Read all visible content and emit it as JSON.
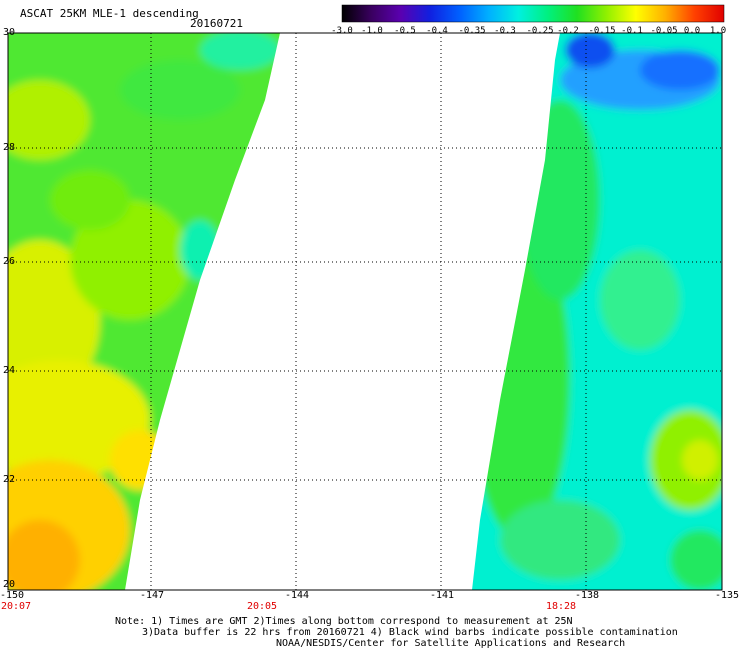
{
  "header": {
    "title": "ASCAT 25KM MLE-1 descending",
    "date": "20160721"
  },
  "colorbar": {
    "labels": [
      "-3.0",
      "-1.0",
      "-0.5",
      "-0.4",
      "-0.35",
      "-0.3",
      "-0.25",
      "-0.2",
      "-0.15",
      "-0.1",
      "-0.05",
      "0.0",
      "1.0"
    ],
    "colors": [
      "#000000",
      "#3a0060",
      "#5a00b0",
      "#1020e0",
      "#0060ff",
      "#00b0ff",
      "#00f0e0",
      "#00f080",
      "#20e020",
      "#90f000",
      "#ffff00",
      "#ffb000",
      "#ff4000",
      "#e00000"
    ]
  },
  "map": {
    "lon_ticks": [
      "-150",
      "-147",
      "-144",
      "-141",
      "-138",
      "-135"
    ],
    "lat_ticks": [
      "30",
      "28",
      "26",
      "24",
      "22",
      "20"
    ],
    "lon_range": [
      -150,
      -135
    ],
    "lat_range": [
      20,
      30
    ],
    "grid": true,
    "times": [
      {
        "label": "20:07",
        "lon": -150
      },
      {
        "label": "20:05",
        "lon": -145.5
      },
      {
        "label": "18:28",
        "lon": -138.5
      }
    ]
  },
  "notes": [
    "Note: 1) Times are GMT 2)Times along bottom correspond to measurement at 25N",
    "3)Data buffer is 22 hrs from 20160721 4) Black wind barbs indicate possible contamination",
    "NOAA/NESDIS/Center for Satellite Applications and Research"
  ]
}
